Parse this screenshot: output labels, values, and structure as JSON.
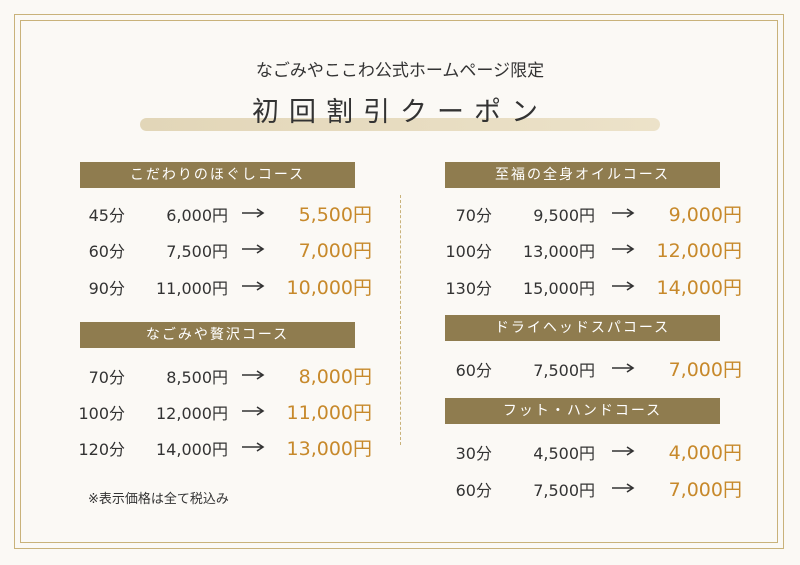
{
  "header": {
    "subtitle": "なごみやここわ公式ホームページ限定",
    "title": "初回割引クーポン"
  },
  "sections": [
    {
      "title": "こだわりのほぐしコース",
      "rows": [
        {
          "time": "45分",
          "regular": "6,000円",
          "price": "5,500円"
        },
        {
          "time": "60分",
          "regular": "7,500円",
          "price": "7,000円"
        },
        {
          "time": "90分",
          "regular": "11,000円",
          "price": "10,000円"
        }
      ]
    },
    {
      "title": "なごみや贅沢コース",
      "rows": [
        {
          "time": "70分",
          "regular": "8,500円",
          "price": "8,000円"
        },
        {
          "time": "100分",
          "regular": "12,000円",
          "price": "11,000円"
        },
        {
          "time": "120分",
          "regular": "14,000円",
          "price": "13,000円"
        }
      ]
    },
    {
      "title": "至福の全身オイルコース",
      "rows": [
        {
          "time": "70分",
          "regular": "9,500円",
          "price": "9,000円"
        },
        {
          "time": "100分",
          "regular": "13,000円",
          "price": "12,000円"
        },
        {
          "time": "130分",
          "regular": "15,000円",
          "price": "14,000円"
        }
      ]
    },
    {
      "title": "ドライヘッドスパコース",
      "rows": [
        {
          "time": "60分",
          "regular": "7,500円",
          "price": "7,000円"
        }
      ]
    },
    {
      "title": "フット・ハンドコース",
      "rows": [
        {
          "time": "30分",
          "regular": "4,500円",
          "price": "4,000円"
        },
        {
          "time": "60分",
          "regular": "7,500円",
          "price": "7,000円"
        }
      ]
    }
  ],
  "note": "※表示価格は全て税込み"
}
